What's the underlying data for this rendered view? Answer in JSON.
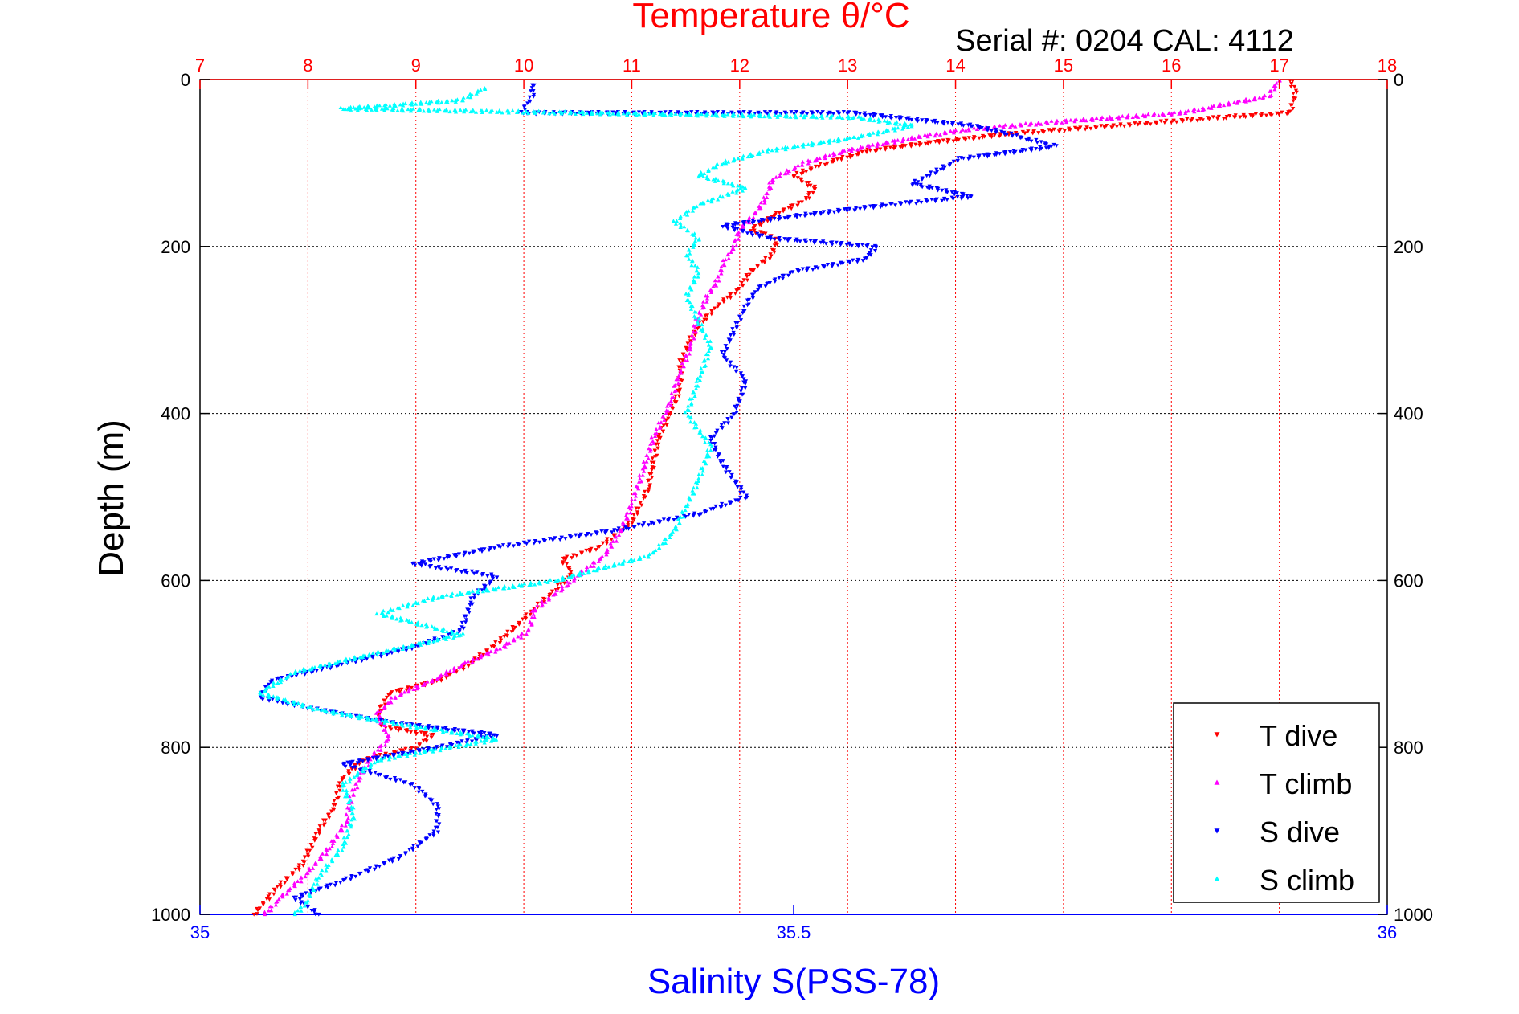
{
  "chart_data": {
    "type": "scatter",
    "title": "Temperature θ/°C",
    "subtitle": "Serial #: 0204  CAL: 4112",
    "ylabel": "Depth (m)",
    "xlabel_bottom": "Salinity S(PSS-78)",
    "y_reversed": true,
    "ylim": [
      0,
      1000
    ],
    "yticks": [
      0,
      200,
      400,
      600,
      800,
      1000
    ],
    "xlim_top": [
      7,
      18
    ],
    "xticks_top": [
      7,
      8,
      9,
      10,
      11,
      12,
      13,
      14,
      15,
      16,
      17,
      18
    ],
    "xlim_bottom": [
      35,
      36
    ],
    "xticks_bottom": [
      "35",
      "35.5",
      "36"
    ],
    "grid": true,
    "legend_position": "bottom-right",
    "colors": {
      "temperature_axis": "#ff0000",
      "salinity_axis": "#0000ff",
      "title": "#ff0000",
      "xlabel_bottom": "#0000ff"
    },
    "series": [
      {
        "name": "T dive",
        "axis": "temperature",
        "color": "#ff0000",
        "marker": "triangle-down",
        "points": [
          [
            17.1,
            0
          ],
          [
            17.15,
            15
          ],
          [
            17.1,
            40
          ],
          [
            16.5,
            45
          ],
          [
            15.5,
            55
          ],
          [
            14.5,
            65
          ],
          [
            13.8,
            75
          ],
          [
            13.2,
            85
          ],
          [
            12.8,
            100
          ],
          [
            12.5,
            115
          ],
          [
            12.7,
            130
          ],
          [
            12.6,
            145
          ],
          [
            12.35,
            160
          ],
          [
            12.1,
            180
          ],
          [
            12.35,
            190
          ],
          [
            12.3,
            210
          ],
          [
            12.1,
            230
          ],
          [
            12.0,
            250
          ],
          [
            11.8,
            270
          ],
          [
            11.65,
            290
          ],
          [
            11.55,
            310
          ],
          [
            11.45,
            340
          ],
          [
            11.45,
            370
          ],
          [
            11.35,
            400
          ],
          [
            11.25,
            430
          ],
          [
            11.2,
            460
          ],
          [
            11.15,
            490
          ],
          [
            11.0,
            530
          ],
          [
            10.7,
            560
          ],
          [
            10.35,
            575
          ],
          [
            10.45,
            590
          ],
          [
            10.3,
            610
          ],
          [
            10.05,
            640
          ],
          [
            9.8,
            670
          ],
          [
            9.5,
            700
          ],
          [
            9.2,
            720
          ],
          [
            8.75,
            735
          ],
          [
            8.65,
            760
          ],
          [
            8.7,
            775
          ],
          [
            9.15,
            785
          ],
          [
            9.0,
            800
          ],
          [
            8.5,
            815
          ],
          [
            8.3,
            840
          ],
          [
            8.25,
            870
          ],
          [
            8.1,
            900
          ],
          [
            7.95,
            940
          ],
          [
            7.7,
            970
          ],
          [
            7.5,
            1000
          ]
        ]
      },
      {
        "name": "T climb",
        "axis": "temperature",
        "color": "#ff00ff",
        "marker": "triangle-up",
        "points": [
          [
            17.0,
            0
          ],
          [
            16.9,
            20
          ],
          [
            16.1,
            40
          ],
          [
            15.0,
            50
          ],
          [
            14.1,
            60
          ],
          [
            13.6,
            70
          ],
          [
            13.0,
            85
          ],
          [
            12.6,
            100
          ],
          [
            12.3,
            120
          ],
          [
            12.25,
            140
          ],
          [
            12.15,
            160
          ],
          [
            12.0,
            180
          ],
          [
            11.95,
            200
          ],
          [
            11.85,
            220
          ],
          [
            11.8,
            240
          ],
          [
            11.7,
            260
          ],
          [
            11.6,
            290
          ],
          [
            11.55,
            320
          ],
          [
            11.45,
            350
          ],
          [
            11.35,
            390
          ],
          [
            11.2,
            430
          ],
          [
            11.1,
            470
          ],
          [
            11.0,
            510
          ],
          [
            10.9,
            540
          ],
          [
            10.75,
            570
          ],
          [
            10.55,
            590
          ],
          [
            10.35,
            610
          ],
          [
            10.1,
            635
          ],
          [
            10.05,
            660
          ],
          [
            9.8,
            680
          ],
          [
            9.45,
            700
          ],
          [
            9.15,
            720
          ],
          [
            8.8,
            740
          ],
          [
            8.65,
            760
          ],
          [
            8.7,
            775
          ],
          [
            8.75,
            790
          ],
          [
            8.6,
            810
          ],
          [
            8.5,
            830
          ],
          [
            8.4,
            860
          ],
          [
            8.35,
            890
          ],
          [
            8.2,
            920
          ],
          [
            8.0,
            950
          ],
          [
            7.75,
            980
          ],
          [
            7.6,
            1000
          ]
        ]
      },
      {
        "name": "S dive",
        "axis": "salinity",
        "color": "#0000ff",
        "marker": "triangle-down",
        "points": [
          [
            35.28,
            5
          ],
          [
            35.28,
            20
          ],
          [
            35.27,
            40
          ],
          [
            35.55,
            40
          ],
          [
            35.65,
            55
          ],
          [
            35.68,
            65
          ],
          [
            35.72,
            80
          ],
          [
            35.64,
            95
          ],
          [
            35.62,
            110
          ],
          [
            35.6,
            125
          ],
          [
            35.65,
            140
          ],
          [
            35.58,
            150
          ],
          [
            35.52,
            160
          ],
          [
            35.44,
            175
          ],
          [
            35.48,
            190
          ],
          [
            35.57,
            200
          ],
          [
            35.56,
            215
          ],
          [
            35.5,
            230
          ],
          [
            35.47,
            250
          ],
          [
            35.46,
            270
          ],
          [
            35.45,
            300
          ],
          [
            35.44,
            330
          ],
          [
            35.46,
            360
          ],
          [
            35.45,
            400
          ],
          [
            35.43,
            430
          ],
          [
            35.44,
            460
          ],
          [
            35.46,
            500
          ],
          [
            35.42,
            520
          ],
          [
            35.35,
            540
          ],
          [
            35.25,
            560
          ],
          [
            35.18,
            580
          ],
          [
            35.25,
            595
          ],
          [
            35.23,
            620
          ],
          [
            35.22,
            660
          ],
          [
            35.18,
            680
          ],
          [
            35.12,
            700
          ],
          [
            35.06,
            720
          ],
          [
            35.05,
            740
          ],
          [
            35.1,
            755
          ],
          [
            35.16,
            770
          ],
          [
            35.25,
            785
          ],
          [
            35.2,
            800
          ],
          [
            35.12,
            820
          ],
          [
            35.18,
            845
          ],
          [
            35.2,
            870
          ],
          [
            35.2,
            900
          ],
          [
            35.17,
            930
          ],
          [
            35.12,
            960
          ],
          [
            35.08,
            980
          ],
          [
            35.1,
            1000
          ]
        ]
      },
      {
        "name": "S climb",
        "axis": "salinity",
        "color": "#00ffff",
        "marker": "triangle-up",
        "points": [
          [
            35.24,
            10
          ],
          [
            35.22,
            25
          ],
          [
            35.12,
            35
          ],
          [
            35.32,
            40
          ],
          [
            35.55,
            45
          ],
          [
            35.6,
            55
          ],
          [
            35.55,
            70
          ],
          [
            35.48,
            85
          ],
          [
            35.44,
            100
          ],
          [
            35.42,
            115
          ],
          [
            35.46,
            130
          ],
          [
            35.42,
            150
          ],
          [
            35.4,
            170
          ],
          [
            35.42,
            190
          ],
          [
            35.41,
            210
          ],
          [
            35.42,
            230
          ],
          [
            35.41,
            260
          ],
          [
            35.42,
            290
          ],
          [
            35.43,
            320
          ],
          [
            35.42,
            360
          ],
          [
            35.41,
            400
          ],
          [
            35.43,
            440
          ],
          [
            35.42,
            480
          ],
          [
            35.41,
            510
          ],
          [
            35.4,
            540
          ],
          [
            35.38,
            570
          ],
          [
            35.3,
            600
          ],
          [
            35.2,
            620
          ],
          [
            35.15,
            640
          ],
          [
            35.22,
            665
          ],
          [
            35.14,
            690
          ],
          [
            35.08,
            710
          ],
          [
            35.05,
            735
          ],
          [
            35.1,
            755
          ],
          [
            35.18,
            775
          ],
          [
            35.25,
            790
          ],
          [
            35.15,
            815
          ],
          [
            35.12,
            845
          ],
          [
            35.13,
            880
          ],
          [
            35.12,
            920
          ],
          [
            35.1,
            955
          ],
          [
            35.09,
            985
          ],
          [
            35.08,
            1000
          ]
        ]
      }
    ]
  }
}
